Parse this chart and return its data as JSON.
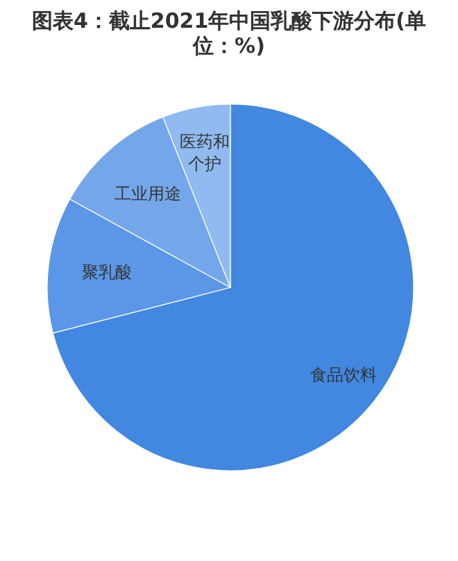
{
  "chart_data": {
    "type": "pie",
    "title": "图表4：截止2021年中国乳酸下游分布(单位：%)",
    "categories": [
      "食品饮料",
      "聚乳酸",
      "工业用途",
      "医药和个护"
    ],
    "values": [
      71,
      12,
      11,
      6
    ],
    "colors": [
      "#4287e0",
      "#5b97e6",
      "#74a7ea",
      "#90baf0"
    ]
  }
}
